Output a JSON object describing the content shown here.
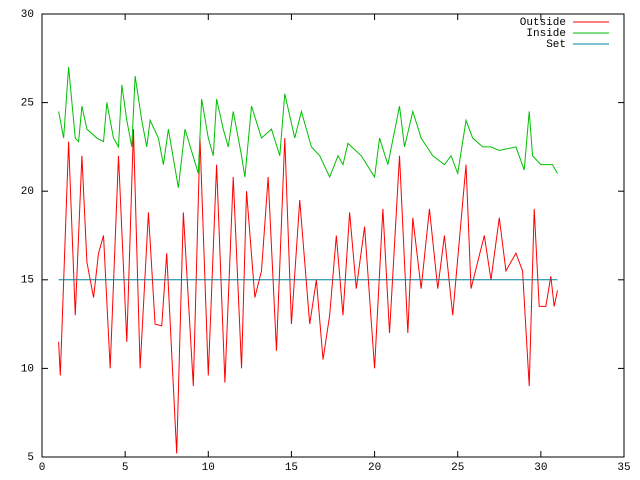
{
  "chart_data": {
    "type": "line",
    "xlim": [
      0,
      35
    ],
    "xticks": [
      0,
      5,
      10,
      15,
      20,
      25,
      30,
      35
    ],
    "ylim": [
      5,
      30
    ],
    "yticks": [
      5,
      10,
      15,
      20,
      25,
      30
    ],
    "legend": "top-right",
    "series": [
      {
        "name": "Outside",
        "color": "#ff0000",
        "x": [
          1,
          1.1,
          1.6,
          2,
          2.4,
          2.7,
          3.1,
          3.4,
          3.7,
          4.1,
          4.6,
          5.1,
          5.5,
          5.9,
          6.4,
          6.8,
          7.2,
          7.5,
          8.1,
          8.5,
          9.1,
          9.5,
          10,
          10.5,
          11,
          11.5,
          12,
          12.3,
          12.8,
          13.2,
          13.6,
          14.1,
          14.6,
          15,
          15.5,
          16.1,
          16.5,
          16.9,
          17.3,
          17.7,
          18.1,
          18.5,
          18.9,
          19.4,
          20,
          20.5,
          20.9,
          21.5,
          22,
          22.3,
          22.8,
          23.3,
          23.8,
          24.2,
          24.7,
          25.5,
          25.8,
          26.2,
          26.6,
          27,
          27.5,
          27.9,
          28.5,
          28.9,
          29.3,
          29.6,
          29.9,
          30.3,
          30.6,
          30.8,
          31
        ],
        "values": [
          11.5,
          9.6,
          22.8,
          13,
          22,
          16,
          14,
          16.5,
          17.5,
          10,
          22,
          11.5,
          23.5,
          10,
          18.8,
          12.5,
          12.4,
          16.5,
          5.2,
          18.8,
          9,
          23,
          9.6,
          21.5,
          9.2,
          20.8,
          10,
          20,
          14,
          15.5,
          20.8,
          11,
          23,
          12.5,
          19.5,
          12.5,
          15,
          10.5,
          13,
          17.5,
          13,
          18.8,
          14.5,
          18,
          10,
          19,
          12,
          22,
          12,
          18.5,
          14.5,
          19,
          14.5,
          17.5,
          13,
          21.5,
          14.5,
          16,
          17.5,
          15,
          18.5,
          15.5,
          16.5,
          15.5,
          9,
          19,
          13.5,
          13.5,
          15.2,
          13.5,
          14.4
        ]
      },
      {
        "name": "Inside",
        "color": "#00c000",
        "x": [
          1,
          1.3,
          1.6,
          2,
          2.2,
          2.4,
          2.7,
          3.3,
          3.7,
          3.9,
          4.3,
          4.6,
          4.8,
          5.1,
          5.4,
          5.6,
          6,
          6.3,
          6.5,
          7,
          7.3,
          7.6,
          8.2,
          8.6,
          9.4,
          9.6,
          10,
          10.3,
          10.5,
          10.9,
          11.2,
          11.5,
          12,
          12.2,
          12.6,
          13.2,
          13.8,
          14.3,
          14.6,
          15.2,
          15.6,
          16.2,
          16.7,
          17.3,
          17.8,
          18.1,
          18.4,
          19.2,
          20,
          20.3,
          20.8,
          21.5,
          21.8,
          22.3,
          22.8,
          23.5,
          24.2,
          24.6,
          25,
          25.5,
          25.9,
          26.5,
          27,
          27.5,
          28.5,
          29,
          29.3,
          29.5,
          30,
          30.7,
          31
        ],
        "values": [
          24.5,
          23,
          27,
          23,
          22.8,
          24.8,
          23.5,
          23,
          22.8,
          25,
          23,
          22.5,
          26,
          24,
          22.5,
          26.5,
          24,
          22.5,
          24,
          23,
          21.5,
          23.5,
          20.2,
          23.5,
          21,
          25.2,
          23,
          22,
          25.2,
          23.5,
          22.5,
          24.5,
          22,
          20.8,
          24.8,
          23,
          23.5,
          22,
          25.5,
          23,
          24.5,
          22.5,
          22,
          20.8,
          22,
          21.5,
          22.7,
          22,
          20.8,
          23,
          21.5,
          24.8,
          22.5,
          24.5,
          23,
          22,
          21.5,
          22,
          21,
          24,
          23,
          22.5,
          22.5,
          22.3,
          22.5,
          21.2,
          24.5,
          22,
          21.5,
          21.5,
          21
        ]
      },
      {
        "name": "Set",
        "color": "#0080a0",
        "x": [
          1,
          31
        ],
        "values": [
          15,
          15
        ]
      }
    ]
  }
}
